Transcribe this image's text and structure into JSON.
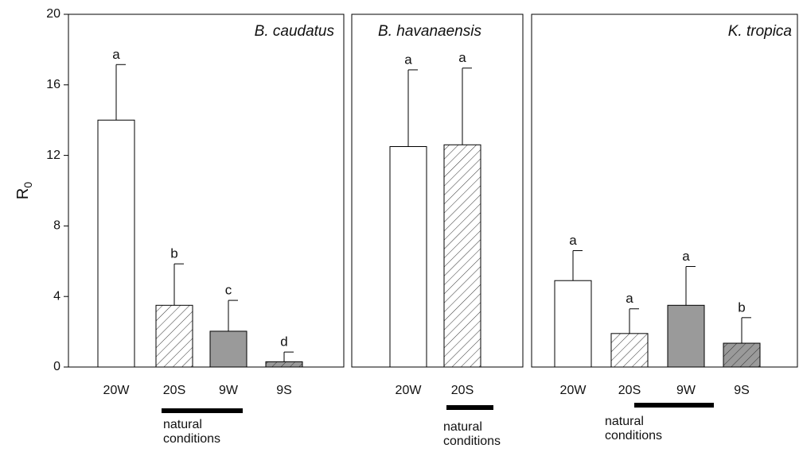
{
  "chart_data": [
    {
      "type": "bar",
      "title": "B. caudatus",
      "ylabel": "R",
      "ylabel_subscript": "0",
      "categories": [
        "20W",
        "20S",
        "9W",
        "9S"
      ],
      "values": [
        14.0,
        3.5,
        2.03,
        0.3
      ],
      "errors": [
        3.15,
        2.35,
        1.75,
        0.55
      ],
      "value_labels": [
        "a",
        "b",
        "c",
        "d"
      ],
      "colors": [
        "#ffffff",
        "#ffffff",
        "#9a9a9a",
        "#9a9a9a"
      ],
      "hatched": [
        false,
        true,
        false,
        true
      ],
      "annotation": [
        "natural",
        "conditions"
      ],
      "ylim": [
        0,
        20
      ],
      "yticks": [
        0,
        4,
        8,
        12,
        16,
        20
      ]
    },
    {
      "type": "bar",
      "title": "B. havanaensis",
      "categories": [
        "20W",
        "20S"
      ],
      "values": [
        12.5,
        12.6
      ],
      "errors": [
        4.35,
        4.35
      ],
      "value_labels": [
        "a",
        "a"
      ],
      "colors": [
        "#ffffff",
        "#ffffff"
      ],
      "hatched": [
        false,
        true
      ],
      "annotation": [
        "natural",
        "conditions"
      ],
      "ylim": [
        0,
        20
      ]
    },
    {
      "type": "bar",
      "title": "K. tropica",
      "categories": [
        "20W",
        "20S",
        "9W",
        "9S"
      ],
      "values": [
        4.9,
        1.9,
        3.5,
        1.35
      ],
      "errors": [
        1.7,
        1.4,
        2.2,
        1.45
      ],
      "value_labels": [
        "a",
        "a",
        "a",
        "b"
      ],
      "colors": [
        "#ffffff",
        "#ffffff",
        "#9a9a9a",
        "#9a9a9a"
      ],
      "hatched": [
        false,
        true,
        false,
        true
      ],
      "annotation": [
        "natural",
        "conditions"
      ],
      "ylim": [
        0,
        20
      ]
    }
  ]
}
